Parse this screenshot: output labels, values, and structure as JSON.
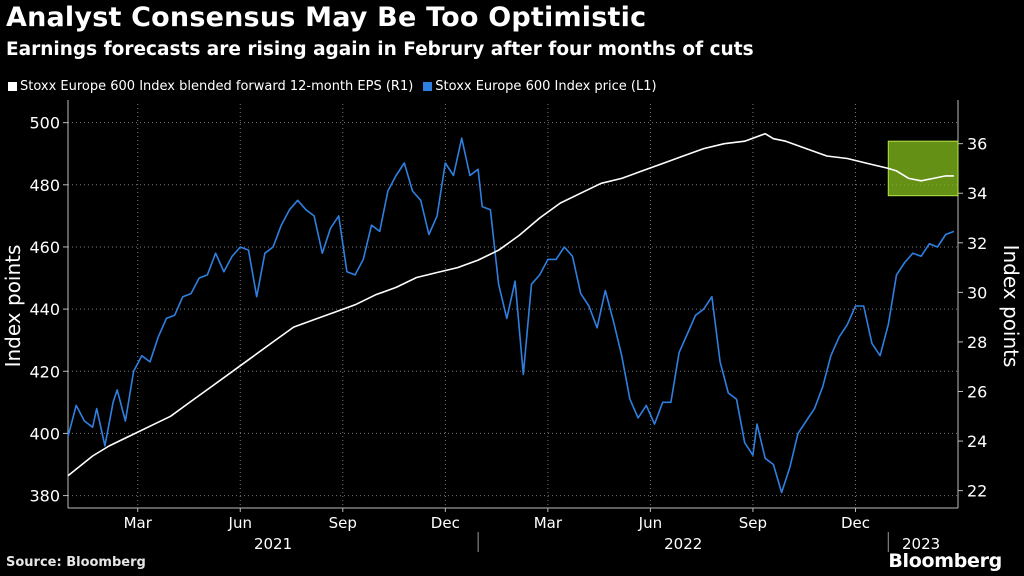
{
  "header": {
    "title": "Analyst Consensus May Be Too Optimistic",
    "subtitle": "Earnings forecasts are rising again in Februry after four months of cuts"
  },
  "footer": {
    "source": "Source: Bloomberg",
    "brand": "Bloomberg"
  },
  "colors": {
    "background": "#000000",
    "eps_line": "#ffffff",
    "price_line": "#2f7fe0",
    "highlight_fill": "#86c21c",
    "highlight_border": "#b7e34a",
    "grid": "#777777"
  },
  "chart_data": {
    "type": "line",
    "legend": [
      {
        "name": "Stoxx Europe 600 Index blended forward 12-month EPS (R1)",
        "color": "#ffffff"
      },
      {
        "name": "Stoxx Europe 600 Index price (L1)",
        "color": "#2f7fe0"
      }
    ],
    "left_axis": {
      "label": "Index points",
      "ylim": [
        376,
        506
      ],
      "ticks": [
        380,
        400,
        420,
        440,
        460,
        480,
        500
      ]
    },
    "right_axis": {
      "label": "Index points",
      "ylim": [
        21.3,
        37.6
      ],
      "ticks": [
        22,
        24,
        26,
        28,
        30,
        32,
        34,
        36
      ]
    },
    "x_axis": {
      "range": [
        2021.0,
        2023.17
      ],
      "month_ticks": [
        {
          "x": 2021.17,
          "label": "Mar"
        },
        {
          "x": 2021.42,
          "label": "Jun"
        },
        {
          "x": 2021.67,
          "label": "Sep"
        },
        {
          "x": 2021.92,
          "label": "Dec"
        },
        {
          "x": 2022.17,
          "label": "Mar"
        },
        {
          "x": 2022.42,
          "label": "Jun"
        },
        {
          "x": 2022.67,
          "label": "Sep"
        },
        {
          "x": 2022.92,
          "label": "Dec"
        }
      ],
      "year_labels": [
        {
          "x": 2021.5,
          "label": "2021"
        },
        {
          "x": 2022.5,
          "label": "2022"
        },
        {
          "x": 2023.08,
          "label": "2023"
        }
      ],
      "year_dividers": [
        2022.0,
        2023.0
      ]
    },
    "grid": true,
    "highlight": {
      "x": [
        2023.0,
        2023.17
      ],
      "y": [
        33.9,
        36.1
      ],
      "axis": "right"
    },
    "series": [
      {
        "name": "Stoxx Europe 600 Index price",
        "axis": "left",
        "x": [
          2021.0,
          2021.02,
          2021.04,
          2021.06,
          2021.07,
          2021.09,
          2021.11,
          2021.12,
          2021.14,
          2021.16,
          2021.18,
          2021.2,
          2021.22,
          2021.24,
          2021.26,
          2021.28,
          2021.3,
          2021.32,
          2021.34,
          2021.36,
          2021.38,
          2021.4,
          2021.42,
          2021.44,
          2021.46,
          2021.48,
          2021.5,
          2021.52,
          2021.54,
          2021.56,
          2021.58,
          2021.6,
          2021.62,
          2021.64,
          2021.66,
          2021.68,
          2021.7,
          2021.72,
          2021.74,
          2021.76,
          2021.78,
          2021.8,
          2021.82,
          2021.84,
          2021.86,
          2021.88,
          2021.9,
          2021.92,
          2021.94,
          2021.96,
          2021.98,
          2022.0,
          2022.01,
          2022.03,
          2022.05,
          2022.07,
          2022.09,
          2022.11,
          2022.13,
          2022.15,
          2022.17,
          2022.19,
          2022.21,
          2022.23,
          2022.25,
          2022.27,
          2022.29,
          2022.31,
          2022.33,
          2022.35,
          2022.37,
          2022.39,
          2022.41,
          2022.43,
          2022.45,
          2022.47,
          2022.49,
          2022.51,
          2022.53,
          2022.55,
          2022.57,
          2022.59,
          2022.61,
          2022.63,
          2022.65,
          2022.67,
          2022.68,
          2022.7,
          2022.72,
          2022.74,
          2022.76,
          2022.78,
          2022.8,
          2022.82,
          2022.84,
          2022.86,
          2022.88,
          2022.9,
          2022.92,
          2022.94,
          2022.96,
          2022.98,
          2023.0,
          2023.02,
          2023.04,
          2023.06,
          2023.08,
          2023.1,
          2023.12,
          2023.14,
          2023.16
        ],
        "values": [
          399,
          409,
          404,
          402,
          408,
          396,
          410,
          414,
          404,
          420,
          425,
          423,
          431,
          437,
          438,
          444,
          445,
          450,
          451,
          458,
          452,
          457,
          460,
          459,
          444,
          458,
          460,
          467,
          472,
          475,
          472,
          470,
          458,
          466,
          470,
          452,
          451,
          456,
          467,
          465,
          478,
          483,
          487,
          478,
          475,
          464,
          470,
          487,
          483,
          495,
          483,
          485,
          473,
          472,
          448,
          437,
          449,
          419,
          448,
          451,
          456,
          456,
          460,
          457,
          445,
          441,
          434,
          446,
          436,
          425,
          411,
          405,
          409,
          403,
          410,
          410,
          426,
          432,
          438,
          440,
          444,
          423,
          413,
          411,
          397,
          393,
          403,
          392,
          390,
          381,
          389,
          400,
          404,
          408,
          415,
          425,
          431,
          435,
          441,
          441,
          429,
          425,
          435,
          451,
          455,
          458,
          457,
          461,
          460,
          464,
          465
        ]
      },
      {
        "name": "Stoxx Europe 600 Index blended forward 12-month EPS",
        "axis": "right",
        "x": [
          2021.0,
          2021.03,
          2021.06,
          2021.1,
          2021.15,
          2021.2,
          2021.25,
          2021.3,
          2021.35,
          2021.4,
          2021.45,
          2021.5,
          2021.55,
          2021.6,
          2021.65,
          2021.7,
          2021.75,
          2021.8,
          2021.85,
          2021.9,
          2021.95,
          2022.0,
          2022.05,
          2022.1,
          2022.15,
          2022.2,
          2022.25,
          2022.3,
          2022.35,
          2022.4,
          2022.45,
          2022.5,
          2022.55,
          2022.6,
          2022.65,
          2022.7,
          2022.72,
          2022.75,
          2022.8,
          2022.85,
          2022.9,
          2022.95,
          2023.0,
          2023.02,
          2023.05,
          2023.08,
          2023.11,
          2023.14,
          2023.16
        ],
        "values": [
          22.6,
          23.0,
          23.4,
          23.8,
          24.2,
          24.6,
          25.0,
          25.6,
          26.2,
          26.8,
          27.4,
          28.0,
          28.6,
          28.9,
          29.2,
          29.5,
          29.9,
          30.2,
          30.6,
          30.8,
          31.0,
          31.3,
          31.7,
          32.3,
          33.0,
          33.6,
          34.0,
          34.4,
          34.6,
          34.9,
          35.2,
          35.5,
          35.8,
          36.0,
          36.1,
          36.4,
          36.2,
          36.1,
          35.8,
          35.5,
          35.4,
          35.2,
          35.0,
          34.9,
          34.6,
          34.5,
          34.6,
          34.7,
          34.7
        ]
      }
    ]
  }
}
